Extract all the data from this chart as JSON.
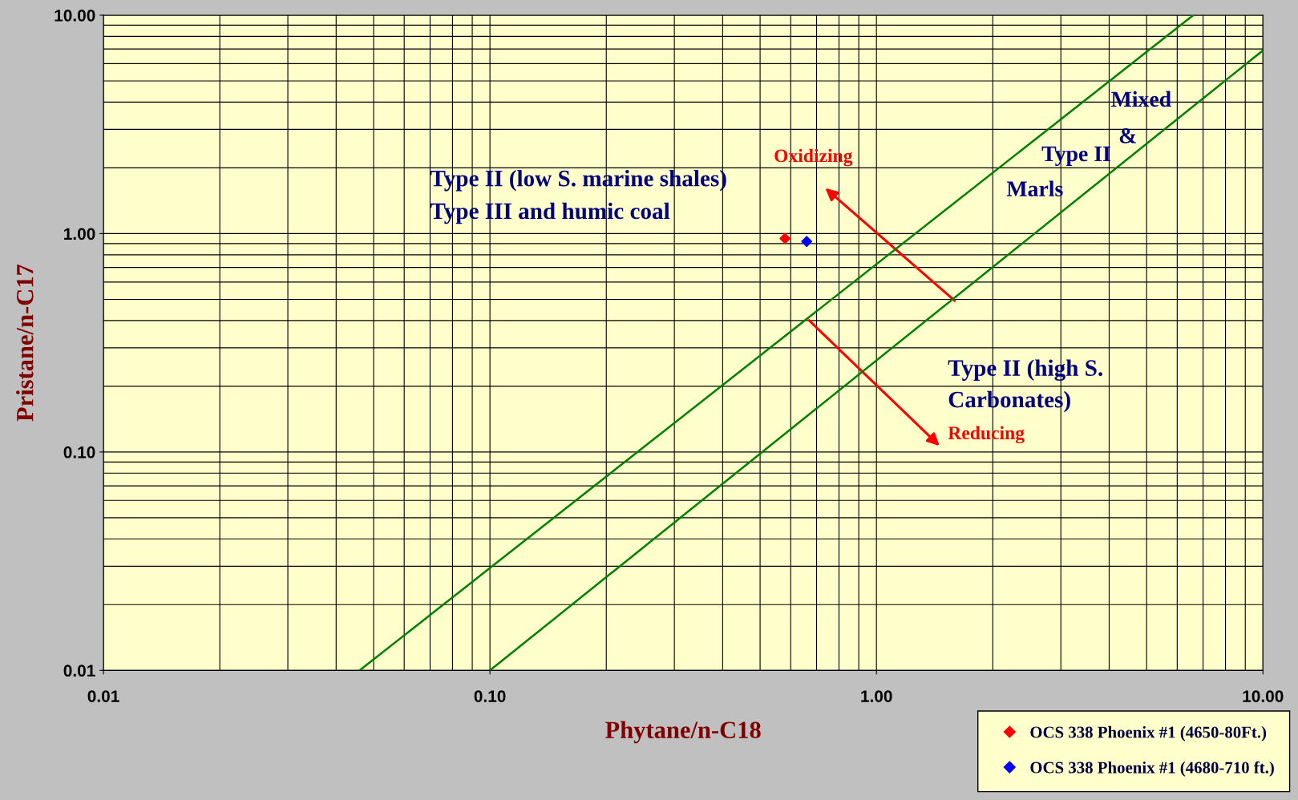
{
  "chart_data": {
    "type": "scatter",
    "xlabel": "Phytane/n-C18",
    "ylabel": "Pristane/n-C17",
    "log": "xy",
    "grid": true,
    "legend": "bottom right",
    "marker": "diamond",
    "xlim": [
      0.01,
      10
    ],
    "ylim": [
      0.01,
      10
    ],
    "xticks": [
      {
        "value": 0.01,
        "label": "0.01"
      },
      {
        "value": 0.1,
        "label": "0.10"
      },
      {
        "value": 1,
        "label": "1.00"
      },
      {
        "value": 10,
        "label": "10.00"
      }
    ],
    "yticks": [
      {
        "value": 0.01,
        "label": "0.01"
      },
      {
        "value": 0.1,
        "label": "0.10"
      },
      {
        "value": 1,
        "label": "1.00"
      },
      {
        "value": 10,
        "label": "10.00"
      }
    ],
    "series": [
      {
        "name": "OCS 338 Phoenix #1 (4650-80Ft.)",
        "color": "#ff0000",
        "x": [
          0.58
        ],
        "values": [
          0.95
        ]
      },
      {
        "name": "OCS 338 Phoenix #1 (4680-710 ft.)",
        "color": "#0000ff",
        "x": [
          0.66
        ],
        "values": [
          0.92
        ]
      },
      {
        "type": "line",
        "color": "#008000",
        "x": [
          0.046,
          6.6
        ],
        "values": [
          0.01,
          10
        ],
        "marker": "none"
      },
      {
        "type": "line",
        "color": "#008000",
        "x": [
          0.1,
          10
        ],
        "values": [
          0.01,
          6.9
        ],
        "marker": "none"
      }
    ],
    "annotations": [
      "Type II (low S. marine shales)",
      "Type III and humic coal",
      "Oxidizing",
      "Mixed",
      "&",
      "Type II",
      "Marls",
      "Type II (high S.",
      "Carbonates)",
      "Reducing"
    ]
  }
}
